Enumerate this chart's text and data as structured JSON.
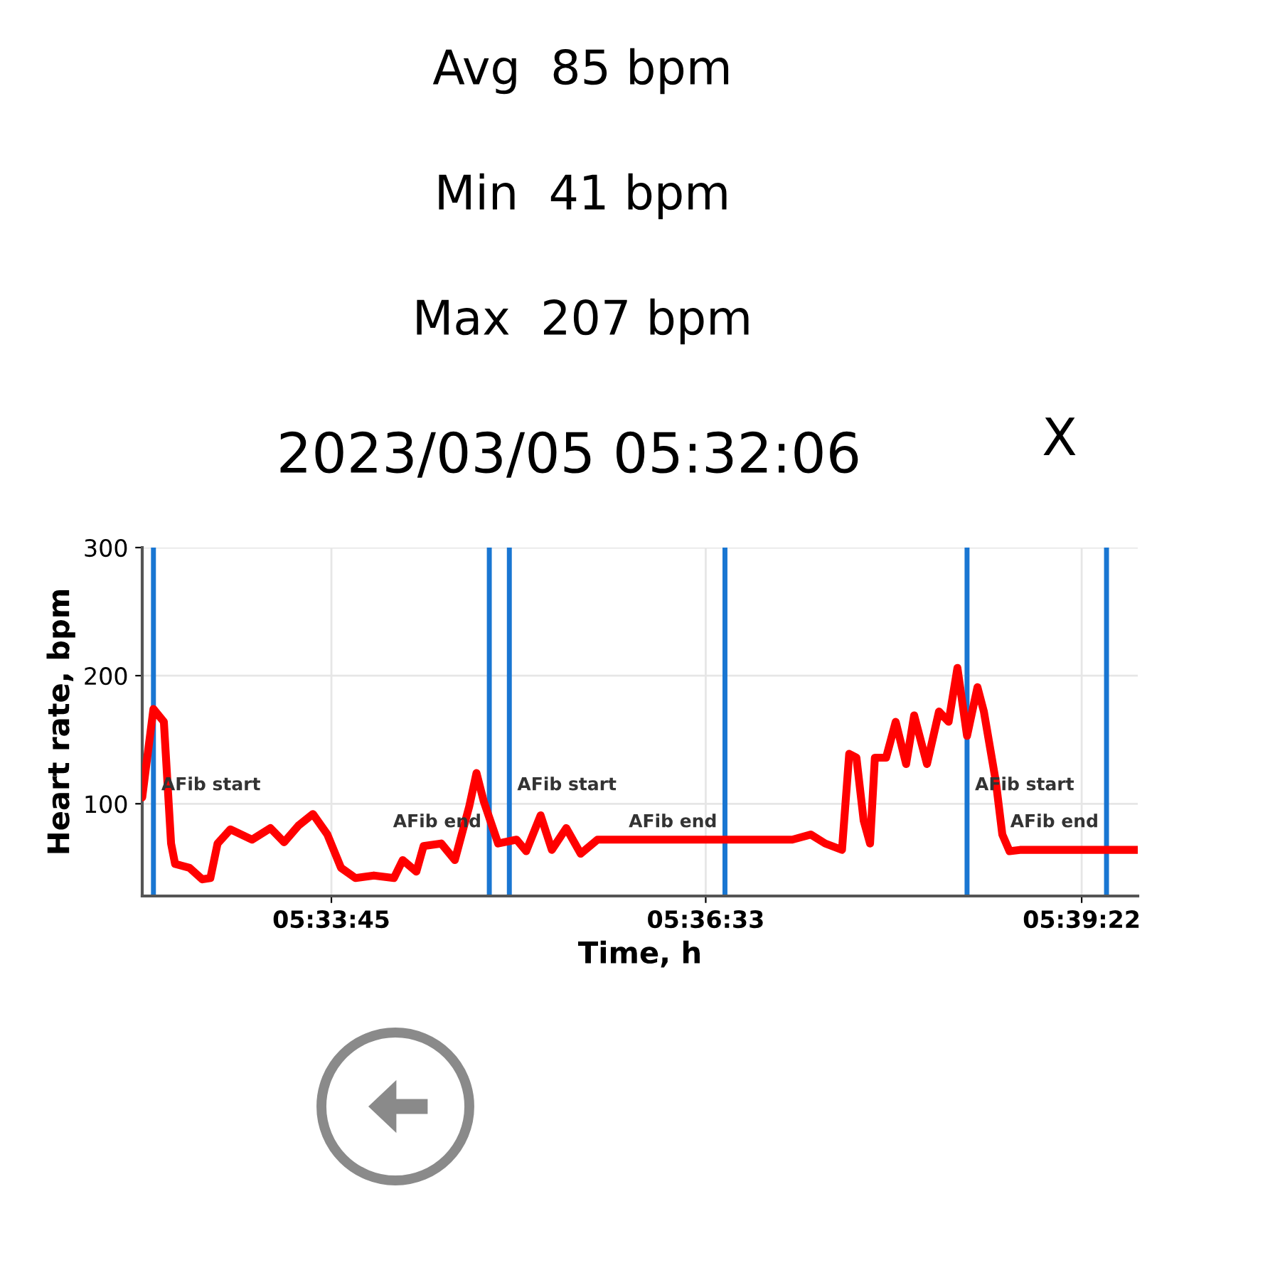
{
  "chart_data": {
    "type": "line",
    "title": "2023/03/05 05:32:06",
    "xlabel": "Time, h",
    "ylabel": "Heart rate, bpm",
    "annotations": [
      "Avg  85 bpm",
      "Min  41 bpm",
      "Max  207 bpm",
      "X"
    ],
    "series": [
      {
        "color": "#ff0000",
        "x": [
          5.5389,
          5.5394,
          5.5403,
          5.5416,
          5.5425,
          5.543,
          5.5448,
          5.5464,
          5.5474,
          5.5483,
          5.5499,
          5.5526,
          5.5549,
          5.5566,
          5.5584,
          5.5602,
          5.562,
          5.5637,
          5.5655,
          5.5678,
          5.5703,
          5.5714,
          5.5731,
          5.574,
          5.5762,
          5.5779,
          5.5797,
          5.5806,
          5.5815,
          5.5833,
          5.5856,
          5.5868,
          5.5886,
          5.59,
          5.5918,
          5.5936,
          5.5957,
          5.62,
          5.6223,
          5.6241,
          5.6262,
          5.6271,
          5.628,
          5.6289,
          5.6297,
          5.6303,
          5.6317,
          5.6329,
          5.6342,
          5.6352,
          5.6368,
          5.6383,
          5.6395,
          5.6406,
          5.6418,
          5.6431,
          5.6439,
          5.6454,
          5.6462,
          5.6471,
          5.6484,
          5.6631
        ],
        "values": [
          105,
          130,
          174,
          164,
          69,
          53,
          50,
          41,
          42,
          69,
          80,
          72,
          81,
          70,
          83,
          92,
          76,
          50,
          42,
          44,
          42,
          56,
          47,
          67,
          69,
          56,
          98,
          124,
          102,
          69,
          72,
          63,
          91,
          64,
          81,
          61,
          72,
          72,
          76,
          69,
          64,
          139,
          136,
          87,
          69,
          136,
          136,
          164,
          131,
          169,
          131,
          172,
          164,
          206,
          153,
          191,
          172,
          117,
          76,
          63,
          64,
          64
        ]
      }
    ],
    "ref_lines": [
      {
        "axis": "x",
        "value": 5.5403,
        "label": "AFib start",
        "color": "#1976d2"
      },
      {
        "axis": "x",
        "value": 5.5822,
        "label": "AFib end",
        "color": "#1976d2"
      },
      {
        "axis": "x",
        "value": 5.5847,
        "label": "AFib start",
        "color": "#1976d2"
      },
      {
        "axis": "x",
        "value": 5.6116,
        "label": "AFib end",
        "color": "#1976d2"
      },
      {
        "axis": "x",
        "value": 5.6418,
        "label": "AFib start",
        "color": "#1976d2"
      },
      {
        "axis": "x",
        "value": 5.6592,
        "label": "AFib end",
        "color": "#1976d2"
      }
    ],
    "xlim": [
      5.5389,
      5.6631
    ],
    "ylim": [
      28,
      300
    ],
    "xticks": [
      {
        "value": 5.5625,
        "label": "05:33:45"
      },
      {
        "value": 5.6092,
        "label": "05:36:33"
      },
      {
        "value": 5.6561,
        "label": "05:39:22"
      }
    ],
    "yticks": [
      100,
      200,
      300
    ],
    "grid": true
  }
}
